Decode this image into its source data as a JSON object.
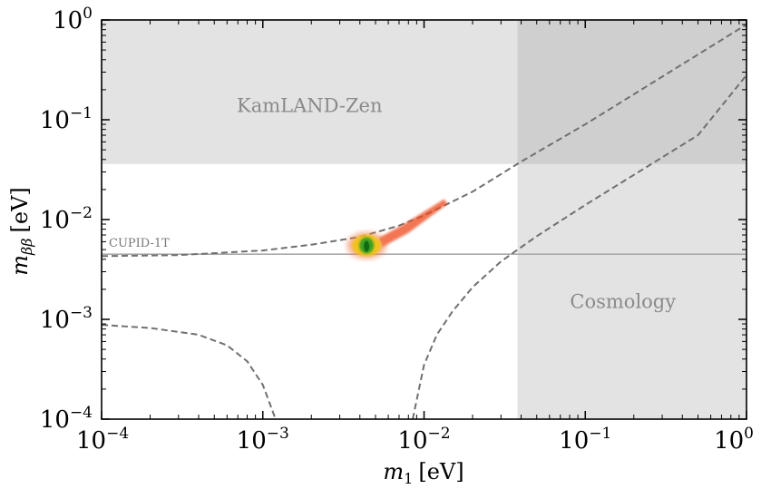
{
  "chart_data": {
    "type": "line",
    "xscale": "log",
    "yscale": "log",
    "xlim": [
      0.0001,
      1
    ],
    "ylim": [
      0.0001,
      1
    ],
    "xlabel_symbol": "m",
    "xlabel_sub": "1",
    "xlabel_unit": "[eV]",
    "ylabel_symbol": "m",
    "ylabel_sub": "ββ",
    "ylabel_unit": "[eV]",
    "x_ticks": [
      {
        "value": 0.0001,
        "base": "10",
        "exp": "−4"
      },
      {
        "value": 0.001,
        "base": "10",
        "exp": "−3"
      },
      {
        "value": 0.01,
        "base": "10",
        "exp": "−2"
      },
      {
        "value": 0.1,
        "base": "10",
        "exp": "−1"
      },
      {
        "value": 1,
        "base": "10",
        "exp": "0"
      }
    ],
    "y_ticks": [
      {
        "value": 0.0001,
        "base": "10",
        "exp": "−4"
      },
      {
        "value": 0.001,
        "base": "10",
        "exp": "−3"
      },
      {
        "value": 0.01,
        "base": "10",
        "exp": "−2"
      },
      {
        "value": 0.1,
        "base": "10",
        "exp": "−1"
      },
      {
        "value": 1,
        "base": "10",
        "exp": "0"
      }
    ],
    "excluded_regions": [
      {
        "name": "kamland-zen",
        "label": "KamLAND-Zen",
        "y_min": 0.036,
        "y_max": 1
      },
      {
        "name": "cosmology",
        "label": "Cosmology",
        "x_min": 0.038,
        "x_max": 1
      }
    ],
    "sensitivity_line": {
      "label": "CUPID-1T",
      "y": 0.0045
    },
    "series": [
      {
        "name": "ordering-band-upper",
        "style": "dashed",
        "x": [
          0.0001,
          0.0003,
          0.001,
          0.002,
          0.004,
          0.007,
          0.01,
          0.02,
          0.04,
          0.1,
          0.2,
          0.5,
          1
        ],
        "y": [
          0.0043,
          0.0044,
          0.0049,
          0.0056,
          0.0067,
          0.0087,
          0.011,
          0.019,
          0.038,
          0.09,
          0.18,
          0.45,
          0.9
        ]
      },
      {
        "name": "ordering-band-lower-left",
        "style": "dashed",
        "x": [
          0.0001,
          0.0002,
          0.0004,
          0.0006,
          0.0008,
          0.001,
          0.0012
        ],
        "y": [
          0.00088,
          0.00082,
          0.0007,
          0.00055,
          0.00038,
          0.00022,
          0.0001
        ]
      },
      {
        "name": "ordering-band-lower-right",
        "style": "dashed",
        "x": [
          0.0085,
          0.01,
          0.012,
          0.015,
          0.02,
          0.03,
          0.05,
          0.1,
          0.2,
          0.5,
          1
        ],
        "y": [
          0.0001,
          0.00035,
          0.0007,
          0.0012,
          0.0021,
          0.0038,
          0.0068,
          0.014,
          0.028,
          0.07,
          0.28
        ]
      }
    ],
    "posterior": {
      "label": "posterior-blob",
      "core": {
        "x": 0.0044,
        "y": 0.0055
      },
      "tail": {
        "x": [
          0.0055,
          0.008,
          0.014
        ],
        "y": [
          0.006,
          0.008,
          0.015
        ]
      }
    }
  }
}
